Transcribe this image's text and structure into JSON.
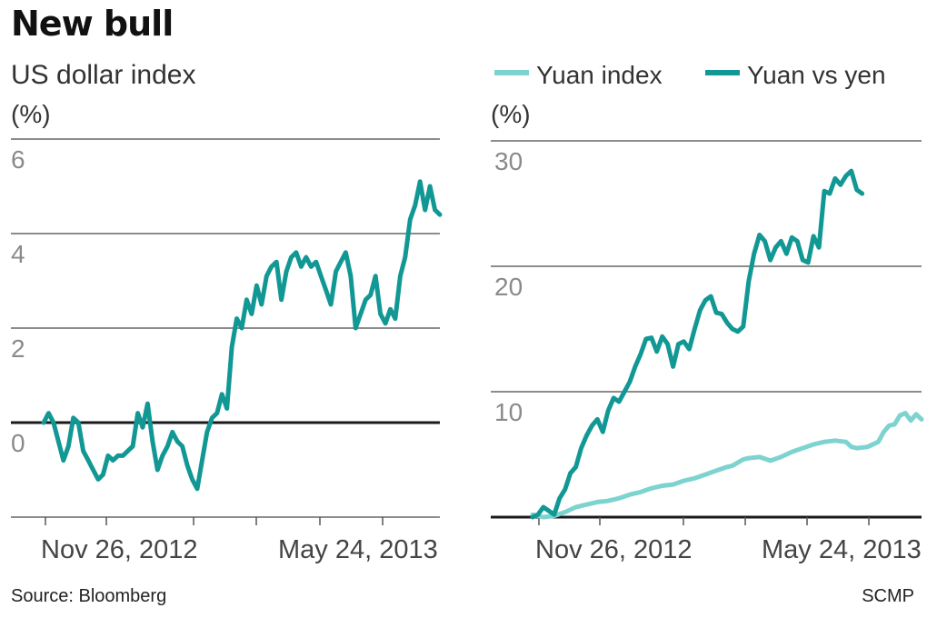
{
  "title": "New bull",
  "source": "Source: Bloomberg",
  "credit": "SCMP",
  "colors": {
    "dark_teal": "#129894",
    "light_teal": "#7dd3cf",
    "grid": "#8c8c8c",
    "zero": "#1a1a1a"
  },
  "chart_data": [
    {
      "type": "line",
      "title": "US dollar index",
      "ylabel": "(%)",
      "ylim": [
        -2,
        6
      ],
      "yticks": [
        "6",
        "4",
        "2",
        "0"
      ],
      "xticks": [
        "Nov 26, 2012",
        "May 24, 2013"
      ],
      "series": [
        {
          "name": "US dollar index",
          "color": "#129894",
          "points": [
            [
              0,
              0
            ],
            [
              1,
              0.2
            ],
            [
              2,
              0
            ],
            [
              3,
              -0.4
            ],
            [
              4,
              -0.8
            ],
            [
              5,
              -0.5
            ],
            [
              6,
              0.1
            ],
            [
              7,
              0
            ],
            [
              8,
              -0.6
            ],
            [
              9,
              -0.8
            ],
            [
              10,
              -1
            ],
            [
              11,
              -1.2
            ],
            [
              12,
              -1.1
            ],
            [
              13,
              -0.7
            ],
            [
              14,
              -0.8
            ],
            [
              15,
              -0.7
            ],
            [
              16,
              -0.7
            ],
            [
              17,
              -0.6
            ],
            [
              18,
              -0.5
            ],
            [
              19,
              0.2
            ],
            [
              20,
              -0.1
            ],
            [
              21,
              0.4
            ],
            [
              22,
              -0.4
            ],
            [
              23,
              -1
            ],
            [
              24,
              -0.7
            ],
            [
              25,
              -0.5
            ],
            [
              26,
              -0.2
            ],
            [
              27,
              -0.4
            ],
            [
              28,
              -0.5
            ],
            [
              29,
              -0.9
            ],
            [
              30,
              -1.2
            ],
            [
              31,
              -1.4
            ],
            [
              32,
              -0.8
            ],
            [
              33,
              -0.2
            ],
            [
              34,
              0.1
            ],
            [
              35,
              0.2
            ],
            [
              36,
              0.6
            ],
            [
              37,
              0.3
            ],
            [
              38,
              1.6
            ],
            [
              39,
              2.2
            ],
            [
              40,
              2
            ],
            [
              41,
              2.6
            ],
            [
              42,
              2.3
            ],
            [
              43,
              2.9
            ],
            [
              44,
              2.5
            ],
            [
              45,
              3.1
            ],
            [
              46,
              3.3
            ],
            [
              47,
              3.4
            ],
            [
              48,
              2.6
            ],
            [
              49,
              3.2
            ],
            [
              50,
              3.5
            ],
            [
              51,
              3.6
            ],
            [
              52,
              3.3
            ],
            [
              53,
              3.5
            ],
            [
              54,
              3.3
            ],
            [
              55,
              3.4
            ],
            [
              56,
              3.1
            ],
            [
              57,
              2.8
            ],
            [
              58,
              2.5
            ],
            [
              59,
              3.2
            ],
            [
              60,
              3.4
            ],
            [
              61,
              3.6
            ],
            [
              62,
              3.1
            ],
            [
              63,
              2
            ],
            [
              64,
              2.3
            ],
            [
              65,
              2.6
            ],
            [
              66,
              2.7
            ],
            [
              67,
              3.1
            ],
            [
              68,
              2.3
            ],
            [
              69,
              2.1
            ],
            [
              70,
              2.4
            ],
            [
              71,
              2.2
            ],
            [
              72,
              3.1
            ],
            [
              73,
              3.5
            ],
            [
              74,
              4.3
            ],
            [
              75,
              4.6
            ],
            [
              76,
              5.1
            ],
            [
              77,
              4.5
            ],
            [
              78,
              5
            ],
            [
              79,
              4.5
            ],
            [
              80,
              4.4
            ]
          ]
        }
      ]
    },
    {
      "type": "line",
      "ylabel": "(%)",
      "ylim": [
        0,
        30
      ],
      "yticks": [
        "30",
        "20",
        "10"
      ],
      "xticks": [
        "Nov 26, 2012",
        "May 24, 2013"
      ],
      "legend": [
        "Yuan index",
        "Yuan vs yen"
      ],
      "series": [
        {
          "name": "Yuan index",
          "color": "#7dd3cf",
          "points": [
            [
              0,
              0.2
            ],
            [
              4,
              0
            ],
            [
              8,
              0.1
            ],
            [
              12,
              0.4
            ],
            [
              16,
              0.8
            ],
            [
              20,
              1
            ],
            [
              24,
              1.2
            ],
            [
              28,
              1.3
            ],
            [
              32,
              1.5
            ],
            [
              36,
              1.8
            ],
            [
              40,
              2
            ],
            [
              44,
              2.3
            ],
            [
              48,
              2.5
            ],
            [
              52,
              2.6
            ],
            [
              56,
              2.9
            ],
            [
              60,
              3.1
            ],
            [
              64,
              3.4
            ],
            [
              68,
              3.7
            ],
            [
              72,
              4
            ],
            [
              74,
              4.1
            ],
            [
              78,
              4.6
            ],
            [
              80,
              4.7
            ],
            [
              84,
              4.8
            ],
            [
              88,
              4.5
            ],
            [
              92,
              4.8
            ],
            [
              96,
              5.2
            ],
            [
              100,
              5.5
            ],
            [
              104,
              5.8
            ],
            [
              108,
              6
            ],
            [
              112,
              6.1
            ],
            [
              116,
              6
            ],
            [
              118,
              5.6
            ],
            [
              120,
              5.5
            ],
            [
              124,
              5.6
            ],
            [
              128,
              6
            ],
            [
              130,
              6.8
            ],
            [
              132,
              7.3
            ],
            [
              134,
              7.4
            ],
            [
              136,
              8.1
            ],
            [
              138,
              8.3
            ],
            [
              140,
              7.7
            ],
            [
              142,
              8.2
            ],
            [
              144,
              7.8
            ]
          ]
        },
        {
          "name": "Yuan vs yen",
          "color": "#129894",
          "points": [
            [
              0,
              0
            ],
            [
              2,
              0.2
            ],
            [
              4,
              0.8
            ],
            [
              6,
              0.5
            ],
            [
              8,
              0.2
            ],
            [
              10,
              1.5
            ],
            [
              12,
              2.2
            ],
            [
              14,
              3.5
            ],
            [
              16,
              4
            ],
            [
              18,
              5.5
            ],
            [
              20,
              6.5
            ],
            [
              22,
              7.3
            ],
            [
              24,
              7.8
            ],
            [
              26,
              6.8
            ],
            [
              28,
              8.5
            ],
            [
              30,
              9.5
            ],
            [
              32,
              9.2
            ],
            [
              34,
              10
            ],
            [
              36,
              10.8
            ],
            [
              38,
              12
            ],
            [
              40,
              13
            ],
            [
              42,
              14.2
            ],
            [
              44,
              14.3
            ],
            [
              46,
              13.2
            ],
            [
              48,
              14.4
            ],
            [
              50,
              13.8
            ],
            [
              52,
              12
            ],
            [
              54,
              13.8
            ],
            [
              56,
              14
            ],
            [
              58,
              13.4
            ],
            [
              60,
              15
            ],
            [
              62,
              16.5
            ],
            [
              64,
              17.3
            ],
            [
              66,
              17.6
            ],
            [
              68,
              16.3
            ],
            [
              70,
              16.2
            ],
            [
              72,
              15.5
            ],
            [
              74,
              15
            ],
            [
              76,
              14.8
            ],
            [
              78,
              15.2
            ],
            [
              80,
              18.8
            ],
            [
              82,
              21
            ],
            [
              84,
              22.5
            ],
            [
              86,
              22
            ],
            [
              88,
              20.5
            ],
            [
              90,
              21.5
            ],
            [
              92,
              22
            ],
            [
              94,
              21
            ],
            [
              96,
              22.3
            ],
            [
              98,
              22
            ],
            [
              100,
              20.5
            ],
            [
              102,
              20.3
            ],
            [
              104,
              22.4
            ],
            [
              106,
              21.5
            ],
            [
              108,
              26
            ],
            [
              110,
              25.8
            ],
            [
              112,
              27
            ],
            [
              114,
              26.5
            ],
            [
              116,
              27.2
            ],
            [
              118,
              27.6
            ],
            [
              120,
              26.1
            ],
            [
              122,
              25.8
            ]
          ]
        }
      ]
    }
  ]
}
